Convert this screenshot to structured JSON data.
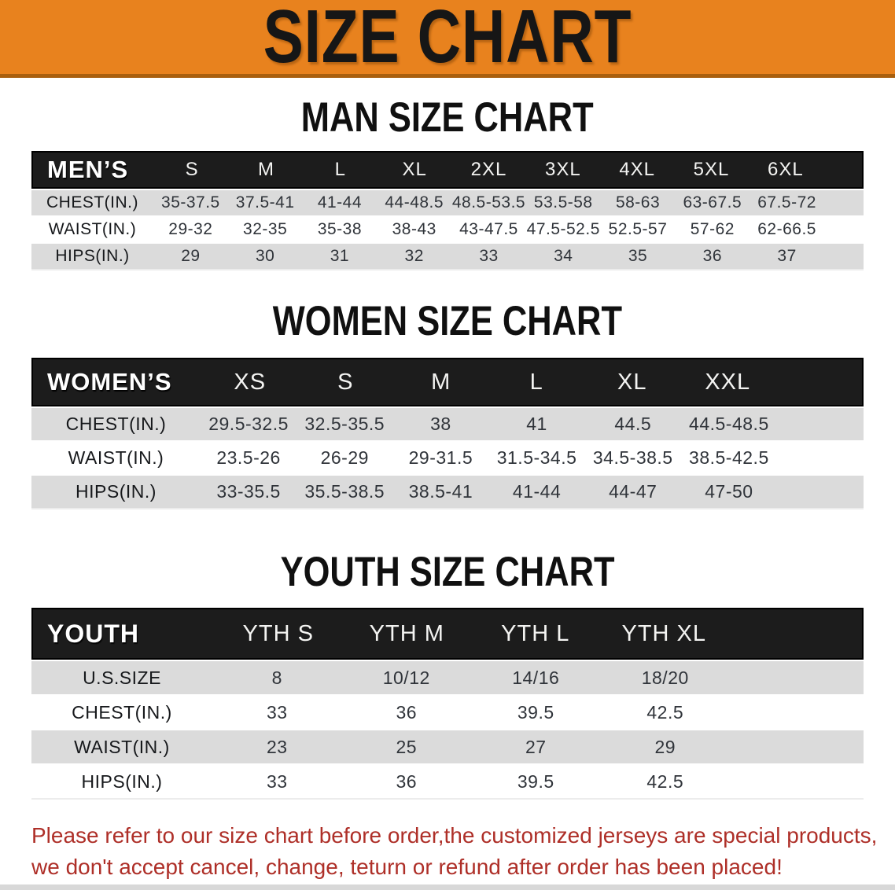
{
  "banner": {
    "title": "SIZE CHART"
  },
  "sections": [
    {
      "heading": "MAN SIZE CHART",
      "table": {
        "id": "mens",
        "group_label": "MEN’S",
        "columns": [
          "S",
          "M",
          "L",
          "XL",
          "2XL",
          "3XL",
          "4XL",
          "5XL",
          "6XL"
        ],
        "rows": [
          {
            "label": "CHEST(IN.)",
            "values": [
              "35-37.5",
              "37.5-41",
              "41-44",
              "44-48.5",
              "48.5-53.5",
              "53.5-58",
              "58-63",
              "63-67.5",
              "67.5-72"
            ]
          },
          {
            "label": "WAIST(IN.)",
            "values": [
              "29-32",
              "32-35",
              "35-38",
              "38-43",
              "43-47.5",
              "47.5-52.5",
              "52.5-57",
              "57-62",
              "62-66.5"
            ]
          },
          {
            "label": "HIPS(IN.)",
            "values": [
              "29",
              "30",
              "31",
              "32",
              "33",
              "34",
              "35",
              "36",
              "37"
            ]
          }
        ]
      }
    },
    {
      "heading": "WOMEN SIZE CHART",
      "table": {
        "id": "womens",
        "group_label": "WOMEN’S",
        "columns": [
          "XS",
          "S",
          "M",
          "L",
          "XL",
          "XXL"
        ],
        "rows": [
          {
            "label": "CHEST(IN.)",
            "values": [
              "29.5-32.5",
              "32.5-35.5",
              "38",
              "41",
              "44.5",
              "44.5-48.5"
            ]
          },
          {
            "label": "WAIST(IN.)",
            "values": [
              "23.5-26",
              "26-29",
              "29-31.5",
              "31.5-34.5",
              "34.5-38.5",
              "38.5-42.5"
            ]
          },
          {
            "label": "HIPS(IN.)",
            "values": [
              "33-35.5",
              "35.5-38.5",
              "38.5-41",
              "41-44",
              "44-47",
              "47-50"
            ]
          }
        ]
      }
    },
    {
      "heading": "YOUTH SIZE CHART",
      "table": {
        "id": "youth",
        "group_label": "YOUTH",
        "columns": [
          "YTH S",
          "YTH M",
          "YTH L",
          "YTH XL"
        ],
        "rows": [
          {
            "label": "U.S.SIZE",
            "values": [
              "8",
              "10/12",
              "14/16",
              "18/20"
            ]
          },
          {
            "label": "CHEST(IN.)",
            "values": [
              "33",
              "36",
              "39.5",
              "42.5"
            ]
          },
          {
            "label": "WAIST(IN.)",
            "values": [
              "23",
              "25",
              "27",
              "29"
            ]
          },
          {
            "label": "HIPS(IN.)",
            "values": [
              "33",
              "36",
              "39.5",
              "42.5"
            ]
          }
        ]
      }
    }
  ],
  "disclaimer": {
    "lines": [
      "Please refer to our size chart before order,the customized jerseys are special products,",
      "we don't accept cancel, change, teturn or refund after order has been placed!"
    ]
  },
  "colors": {
    "banner_bg": "#E8821E",
    "banner_edge": "#A95F0E",
    "banner_text": "#161616",
    "band": "#1C1C1C",
    "row_alt": "#DBDBDB",
    "label_text": "#16181B",
    "value_text": "#30343A",
    "disclaimer": "#AE2F28"
  }
}
